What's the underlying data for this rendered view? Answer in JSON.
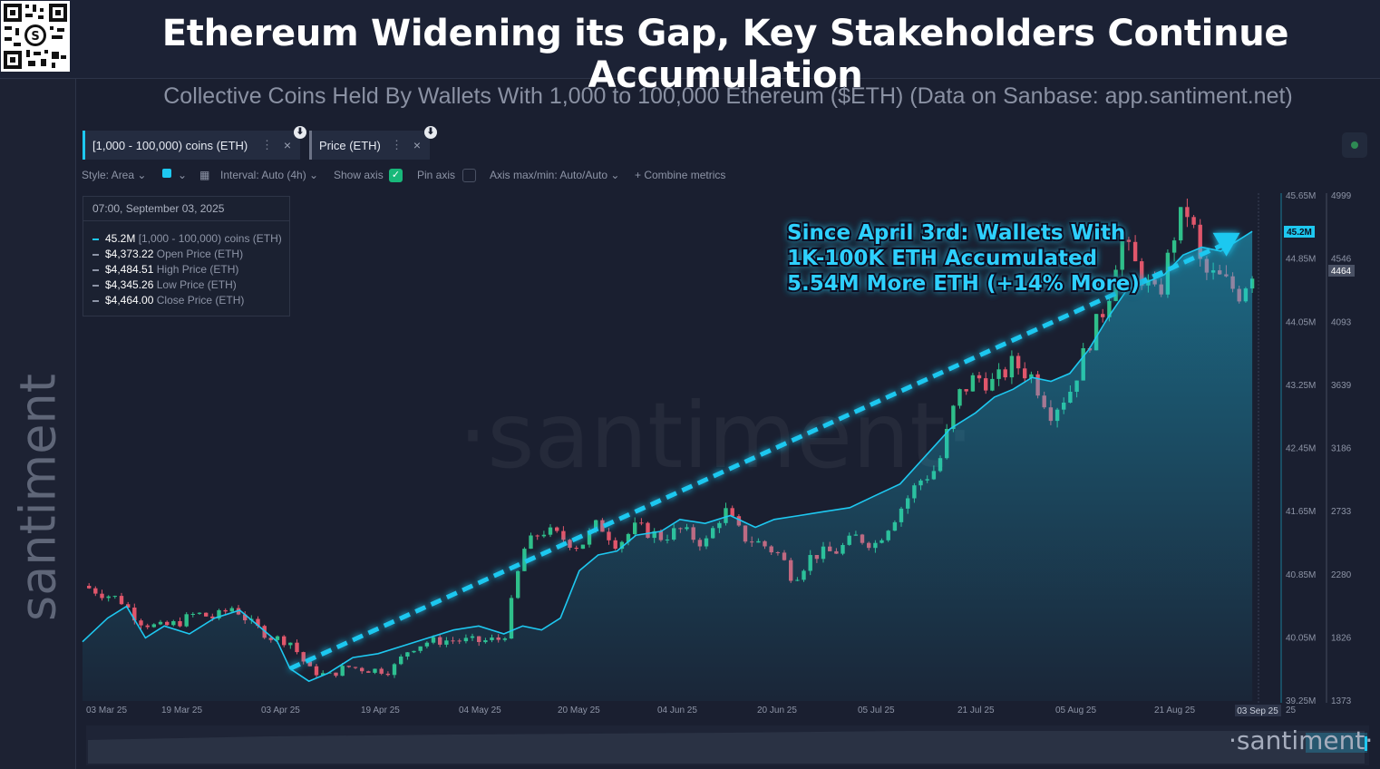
{
  "title": "Ethereum Widening its Gap, Key Stakeholders Continue Accumulation",
  "subtitle": "Collective Coins Held By Wallets With 1,000 to 100,000 Ethereum ($ETH) (Data on Sanbase: app.santiment.net)",
  "brand": "santiment",
  "brand_bottom": "·santiment·",
  "watermark": "·santiment·",
  "tabs": [
    {
      "label": "[1,000 - 100,000) coins (ETH)",
      "close": "×",
      "menu": "⋮"
    },
    {
      "label": "Price (ETH)",
      "close": "×",
      "menu": "⋮"
    }
  ],
  "toolbar": {
    "style": "Style: Area",
    "interval": "Interval: Auto (4h)",
    "show_axis": "Show axis",
    "pin_axis": "Pin axis",
    "axis_minmax": "Axis max/min: Auto/Auto",
    "combine": "+  Combine metrics"
  },
  "tooltip": {
    "date": "07:00, September 03, 2025",
    "rows": [
      {
        "value": "45.2M",
        "label": "[1,000 - 100,000) coins (ETH)"
      },
      {
        "value": "$4,373.22",
        "label": "Open Price (ETH)"
      },
      {
        "value": "$4,484.51",
        "label": "High Price (ETH)"
      },
      {
        "value": "$4,345.26",
        "label": "Low Price (ETH)"
      },
      {
        "value": "$4,464.00",
        "label": "Close Price (ETH)"
      }
    ]
  },
  "annotation": [
    "Since April 3rd: Wallets With",
    "1K-100K ETH Accumulated",
    "5.54M More ETH (+14% More)"
  ],
  "colors": {
    "holdings": "#1ec8f0",
    "up": "#2fbf8a",
    "down": "#e0566b",
    "trend": "#1ec8f0",
    "background": "#1a1f30"
  },
  "chart_data": {
    "type": "area",
    "x_ticks": [
      "03 Mar 25",
      "19 Mar 25",
      "03 Apr 25",
      "19 Apr 25",
      "04 May 25",
      "20 May 25",
      "04 Jun 25",
      "20 Jun 25",
      "05 Jul 25",
      "21 Jul 25",
      "05 Aug 25",
      "21 Aug 25",
      "03 Sep 25",
      "25"
    ],
    "x_range": [
      "2025-03-01",
      "2025-09-04"
    ],
    "current_x": "03 Sep 25",
    "axes": {
      "holdings": {
        "ticks": [
          "45.65M",
          "44.85M",
          "44.05M",
          "43.25M",
          "42.45M",
          "41.65M",
          "40.85M",
          "40.05M",
          "39.25M"
        ],
        "ylim": [
          39.25,
          45.65
        ],
        "unit": "M",
        "current": "45.2M",
        "current_value": 45.2
      },
      "price": {
        "ticks": [
          "4999",
          "4546",
          "4093",
          "3639",
          "3186",
          "2733",
          "2280",
          "1826",
          "1373"
        ],
        "ylim": [
          1373,
          4999
        ],
        "current": "4464",
        "current_value": 4464
      }
    },
    "series": [
      {
        "name": "[1,000 - 100,000) coins (ETH)",
        "type": "area",
        "axis": "holdings",
        "points": [
          [
            "2025-03-01",
            40.0
          ],
          [
            "2025-03-05",
            40.3
          ],
          [
            "2025-03-08",
            40.45
          ],
          [
            "2025-03-11",
            40.05
          ],
          [
            "2025-03-14",
            40.2
          ],
          [
            "2025-03-18",
            40.1
          ],
          [
            "2025-03-22",
            40.3
          ],
          [
            "2025-03-26",
            40.4
          ],
          [
            "2025-03-29",
            40.2
          ],
          [
            "2025-04-01",
            40.0
          ],
          [
            "2025-04-03",
            39.66
          ],
          [
            "2025-04-06",
            39.5
          ],
          [
            "2025-04-09",
            39.6
          ],
          [
            "2025-04-13",
            39.8
          ],
          [
            "2025-04-17",
            39.85
          ],
          [
            "2025-04-21",
            39.95
          ],
          [
            "2025-04-25",
            40.05
          ],
          [
            "2025-04-29",
            40.15
          ],
          [
            "2025-05-03",
            40.2
          ],
          [
            "2025-05-07",
            40.1
          ],
          [
            "2025-05-10",
            40.2
          ],
          [
            "2025-05-13",
            40.15
          ],
          [
            "2025-05-16",
            40.3
          ],
          [
            "2025-05-19",
            40.9
          ],
          [
            "2025-05-22",
            41.1
          ],
          [
            "2025-05-25",
            41.15
          ],
          [
            "2025-05-28",
            41.35
          ],
          [
            "2025-06-01",
            41.4
          ],
          [
            "2025-06-04",
            41.55
          ],
          [
            "2025-06-08",
            41.5
          ],
          [
            "2025-06-12",
            41.6
          ],
          [
            "2025-06-16",
            41.45
          ],
          [
            "2025-06-19",
            41.55
          ],
          [
            "2025-06-23",
            41.6
          ],
          [
            "2025-06-27",
            41.65
          ],
          [
            "2025-07-01",
            41.7
          ],
          [
            "2025-07-05",
            41.85
          ],
          [
            "2025-07-09",
            42.0
          ],
          [
            "2025-07-13",
            42.35
          ],
          [
            "2025-07-17",
            42.7
          ],
          [
            "2025-07-21",
            42.9
          ],
          [
            "2025-07-24",
            43.1
          ],
          [
            "2025-07-27",
            43.2
          ],
          [
            "2025-07-30",
            43.35
          ],
          [
            "2025-08-02",
            43.3
          ],
          [
            "2025-08-05",
            43.4
          ],
          [
            "2025-08-08",
            43.7
          ],
          [
            "2025-08-11",
            44.1
          ],
          [
            "2025-08-14",
            44.45
          ],
          [
            "2025-08-17",
            44.55
          ],
          [
            "2025-08-20",
            44.65
          ],
          [
            "2025-08-23",
            44.9
          ],
          [
            "2025-08-26",
            45.0
          ],
          [
            "2025-08-29",
            44.95
          ],
          [
            "2025-09-01",
            45.1
          ],
          [
            "2025-09-03",
            45.2
          ]
        ]
      },
      {
        "name": "Price (ETH)",
        "type": "candlestick",
        "axis": "price",
        "points": [
          [
            "2025-03-01",
            2200
          ],
          [
            "2025-03-04",
            2150
          ],
          [
            "2025-03-07",
            2100
          ],
          [
            "2025-03-10",
            1950
          ],
          [
            "2025-03-13",
            1900
          ],
          [
            "2025-03-16",
            1930
          ],
          [
            "2025-03-19",
            2000
          ],
          [
            "2025-03-22",
            1970
          ],
          [
            "2025-03-25",
            2050
          ],
          [
            "2025-03-28",
            1920
          ],
          [
            "2025-03-31",
            1830
          ],
          [
            "2025-04-03",
            1800
          ],
          [
            "2025-04-06",
            1600
          ],
          [
            "2025-04-09",
            1550
          ],
          [
            "2025-04-12",
            1620
          ],
          [
            "2025-04-15",
            1600
          ],
          [
            "2025-04-19",
            1590
          ],
          [
            "2025-04-22",
            1750
          ],
          [
            "2025-04-25",
            1800
          ],
          [
            "2025-04-29",
            1810
          ],
          [
            "2025-05-03",
            1800
          ],
          [
            "2025-05-07",
            1820
          ],
          [
            "2025-05-10",
            2450
          ],
          [
            "2025-05-13",
            2600
          ],
          [
            "2025-05-16",
            2550
          ],
          [
            "2025-05-19",
            2480
          ],
          [
            "2025-05-22",
            2650
          ],
          [
            "2025-05-25",
            2500
          ],
          [
            "2025-05-28",
            2620
          ],
          [
            "2025-06-01",
            2550
          ],
          [
            "2025-06-04",
            2600
          ],
          [
            "2025-06-08",
            2500
          ],
          [
            "2025-06-11",
            2750
          ],
          [
            "2025-06-14",
            2550
          ],
          [
            "2025-06-17",
            2500
          ],
          [
            "2025-06-20",
            2420
          ],
          [
            "2025-06-22",
            2250
          ],
          [
            "2025-06-25",
            2420
          ],
          [
            "2025-06-29",
            2450
          ],
          [
            "2025-07-02",
            2550
          ],
          [
            "2025-07-05",
            2500
          ],
          [
            "2025-07-09",
            2750
          ],
          [
            "2025-07-12",
            2950
          ],
          [
            "2025-07-15",
            3050
          ],
          [
            "2025-07-18",
            3550
          ],
          [
            "2025-07-21",
            3700
          ],
          [
            "2025-07-24",
            3650
          ],
          [
            "2025-07-27",
            3800
          ],
          [
            "2025-07-30",
            3700
          ],
          [
            "2025-08-02",
            3450
          ],
          [
            "2025-08-05",
            3600
          ],
          [
            "2025-08-08",
            3950
          ],
          [
            "2025-08-11",
            4250
          ],
          [
            "2025-08-13",
            4700
          ],
          [
            "2025-08-16",
            4450
          ],
          [
            "2025-08-19",
            4250
          ],
          [
            "2025-08-22",
            4800
          ],
          [
            "2025-08-24",
            4900
          ],
          [
            "2025-08-26",
            4450
          ],
          [
            "2025-08-29",
            4400
          ],
          [
            "2025-09-01",
            4300
          ],
          [
            "2025-09-03",
            4464
          ]
        ]
      }
    ],
    "trendline": {
      "axis": "holdings",
      "from": [
        "2025-04-03",
        39.66
      ],
      "to": [
        "2025-09-03",
        45.2
      ]
    }
  }
}
